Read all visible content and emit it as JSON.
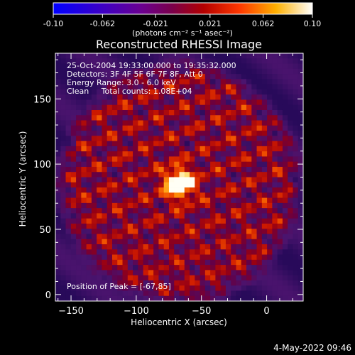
{
  "colorbar": {
    "tick_labels": [
      "-0.10",
      "-0.062",
      "-0.021",
      "0.021",
      "0.062",
      "0.10"
    ],
    "tick_values": [
      -0.1,
      -0.062,
      -0.021,
      0.021,
      0.062,
      0.1
    ],
    "range": [
      -0.1,
      0.1
    ],
    "units_label": "(photons cm⁻² s⁻¹ asec⁻²)"
  },
  "plot": {
    "title": "Reconstructed RHESSI Image",
    "info_lines": [
      "25-Oct-2004 19:33:00.000 to 19:35:32.000",
      "Detectors: 3F 4F 5F 6F 7F 8F, Att 0",
      "Energy Range: 3.0 - 6.0 keV",
      "Clean     Total counts: 1.08E+04"
    ],
    "peak_label": "Position of Peak = [-67,85]"
  },
  "chart_data": {
    "type": "heatmap",
    "title": "Reconstructed RHESSI Image",
    "xlabel": "Heliocentric X (arcsec)",
    "ylabel": "Heliocentric Y (arcsec)",
    "xlim": [
      -162,
      28
    ],
    "ylim": [
      -5,
      185
    ],
    "x_ticks": [
      -150,
      -100,
      -50,
      0
    ],
    "x_tick_labels": [
      "−150",
      "−100",
      "−50",
      "0"
    ],
    "y_ticks": [
      0,
      50,
      100,
      150
    ],
    "y_tick_labels": [
      "0",
      "50",
      "100",
      "150"
    ],
    "color_range": [
      -0.1,
      0.1
    ],
    "colormap": "red-temperature",
    "peak": {
      "x": -67,
      "y": 85
    }
  },
  "footer": {
    "timestamp": "4-May-2022 09:46"
  }
}
